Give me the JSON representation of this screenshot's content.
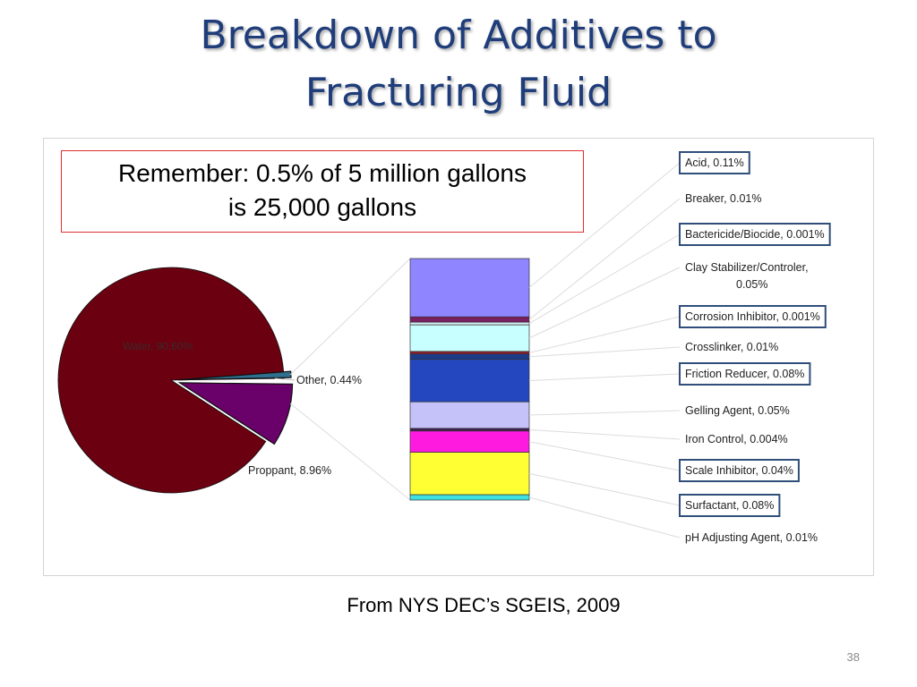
{
  "slide": {
    "title_line1": "Breakdown of Additives to",
    "title_line2": "Fracturing Fluid",
    "callout_line1": "Remember: 0.5% of 5 million gallons",
    "callout_line2": "is 25,000 gallons",
    "source": "From NYS DEC’s SGEIS, 2009",
    "page_number": "38"
  },
  "chart_data": [
    {
      "type": "pie",
      "slices": [
        {
          "label": "Water, 90.60%",
          "value": 90.6,
          "color": "#6b0010",
          "exploded": false
        },
        {
          "label": "Proppant, 8.96%",
          "value": 8.96,
          "color": "#6a006a",
          "exploded": true
        },
        {
          "label": "Other, 0.44%",
          "value": 0.44,
          "color": "#2f6f8f",
          "exploded": true
        }
      ]
    },
    {
      "type": "bar",
      "stacked": true,
      "segments": [
        {
          "label": "Acid, 0.11%",
          "value": 0.11,
          "color": "#8f86ff",
          "boxed": true
        },
        {
          "label": "Breaker, 0.01%",
          "value": 0.01,
          "color": "#7a2060",
          "boxed": false
        },
        {
          "label": "Bactericide/Biocide, 0.001%",
          "value": 0.001,
          "color": "#d8f0f8",
          "boxed": true
        },
        {
          "label": "Clay Stabilizer/Controler, 0.05%",
          "value": 0.05,
          "color": "#c8ffff",
          "boxed": false
        },
        {
          "label": "Corrosion Inhibitor, 0.001%",
          "value": 0.001,
          "color": "#8a2030",
          "boxed": true
        },
        {
          "label": "Crosslinker, 0.01%",
          "value": 0.01,
          "color": "#1a3a8a",
          "boxed": false
        },
        {
          "label": "Friction Reducer, 0.08%",
          "value": 0.08,
          "color": "#2447c0",
          "boxed": true
        },
        {
          "label": "Gelling Agent, 0.05%",
          "value": 0.05,
          "color": "#c4c2f8",
          "boxed": false
        },
        {
          "label": "Iron Control, 0.004%",
          "value": 0.004,
          "color": "#402050",
          "boxed": false
        },
        {
          "label": "Scale Inhibitor, 0.04%",
          "value": 0.04,
          "color": "#ff1ae0",
          "boxed": true
        },
        {
          "label": "Surfactant, 0.08%",
          "value": 0.08,
          "color": "#ffff33",
          "boxed": true
        },
        {
          "label": "pH Adjusting Agent, 0.01%",
          "value": 0.01,
          "color": "#40e0e0",
          "boxed": false
        }
      ]
    }
  ]
}
